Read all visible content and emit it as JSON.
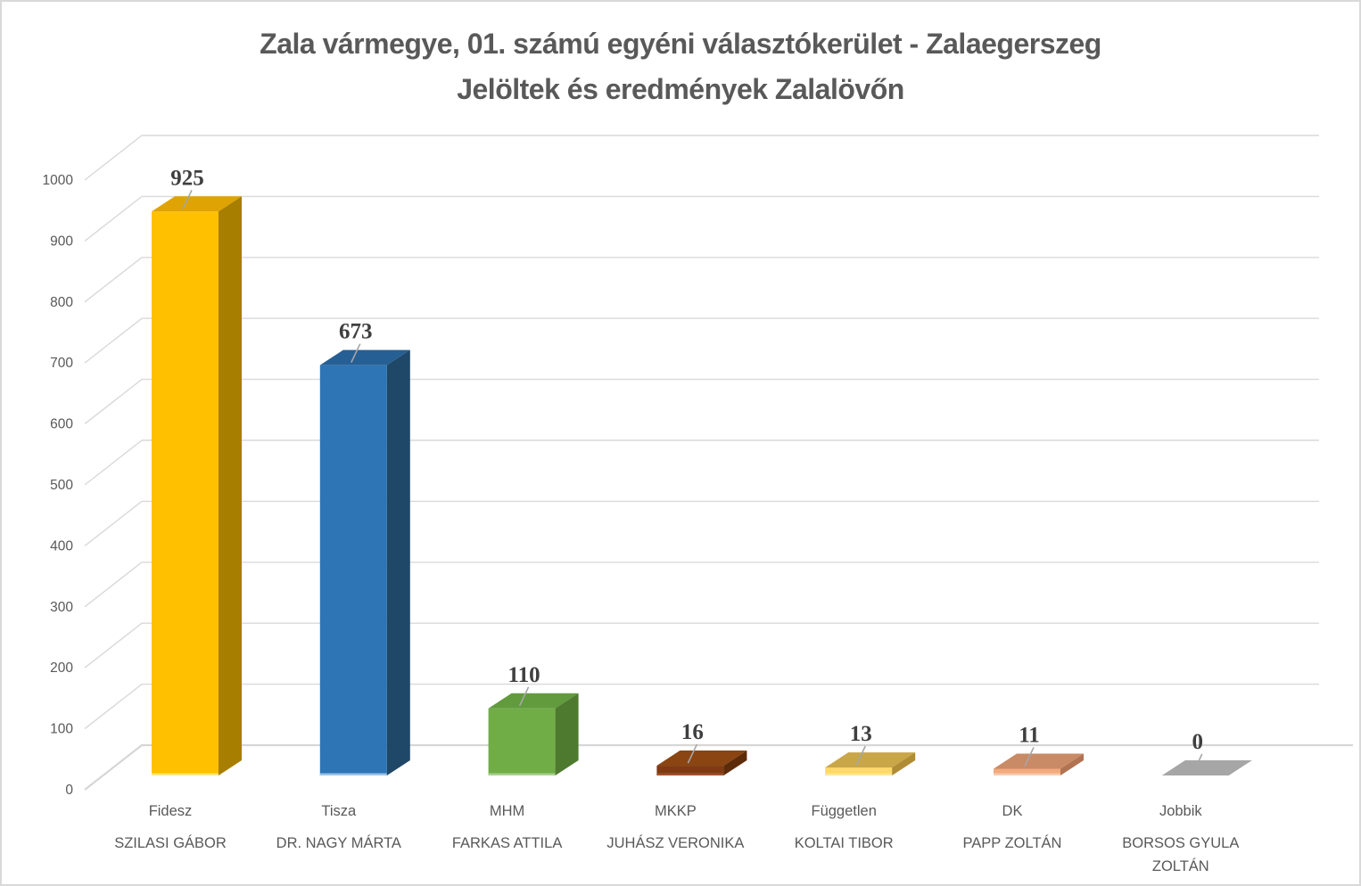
{
  "page": {
    "background_color": "#FFFFFF",
    "border_color": "#D9D9D9"
  },
  "chart_data": {
    "type": "bar",
    "style": "3d-clustered-column",
    "title": "Zala vármegye, 01. számú egyéni választókerület - Zalaegerszeg",
    "subtitle": "Jelöltek és eredmények Zalalövőn",
    "categories": [
      "Fidesz",
      "Tisza",
      "MHM",
      "MKKP",
      "Független",
      "DK",
      "Jobbik"
    ],
    "candidates": [
      "SZILASI GÁBOR",
      "DR. NAGY MÁRTA",
      "FARKAS ATTILA",
      "JUHÁSZ VERONIKA",
      "KOLTAI TIBOR",
      "PAPP ZOLTÁN",
      "BORSOS GYULA ZOLTÁN"
    ],
    "values": [
      925,
      673,
      110,
      16,
      13,
      11,
      0
    ],
    "value_labels": [
      "925",
      "673",
      "110",
      "16",
      "13",
      "11",
      "0"
    ],
    "series_colors": [
      {
        "front": "#FFC000",
        "top": "#DFA303",
        "side": "#A87E00",
        "bevel": "#FFE58A"
      },
      {
        "front": "#2E75B6",
        "top": "#265F94",
        "side": "#1F4768",
        "bevel": "#9DC3E6"
      },
      {
        "front": "#70AD47",
        "top": "#619B3D",
        "side": "#4E7A2F",
        "bevel": "#A9D18E"
      },
      {
        "front": "#7E3A10",
        "top": "#8A4513",
        "side": "#5E2B09",
        "bevel": "#A0522D"
      },
      {
        "front": "#FFD966",
        "top": "#C9A648",
        "side": "#B08C35",
        "bevel": "#FFE699"
      },
      {
        "front": "#F2AA7E",
        "top": "#C98A66",
        "side": "#B17352",
        "bevel": "#F8CBAD"
      },
      {
        "front": "#A6A6A6",
        "top": "#A6A6A6",
        "side": "#8C8C8C",
        "bevel": "#BFBFBF"
      }
    ],
    "xlabel": "",
    "ylabel": "",
    "ylim": [
      0,
      1000
    ],
    "ytick_step": 100,
    "yticks": [
      0,
      100,
      200,
      300,
      400,
      500,
      600,
      700,
      800,
      900,
      1000
    ],
    "grid": true,
    "legend": false,
    "axis_text_color": "#595959",
    "value_label_color": "#3F3F3F",
    "gridline_color": "#D9D9D9",
    "floor_line_color": "#D6D6D6",
    "leader_line_color": "#A6A6A6"
  }
}
